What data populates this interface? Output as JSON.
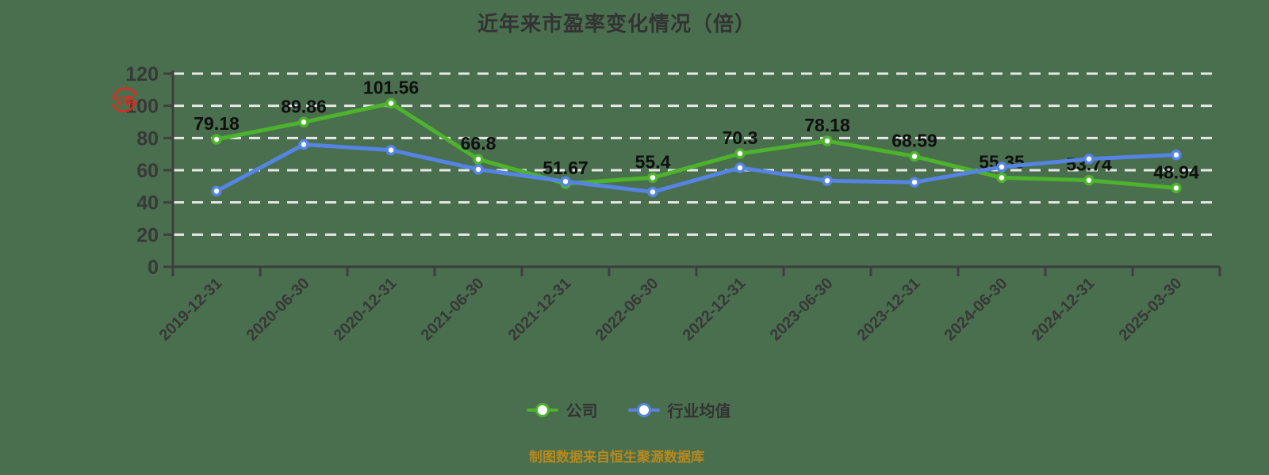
{
  "title": "近年来市盈率变化情况（倍）",
  "seal": {
    "text": "证星",
    "color": "#e02b20"
  },
  "caption": {
    "text": "制图数据来自恒生聚源数据库",
    "color": "#b8891c"
  },
  "legend": {
    "items": [
      {
        "label": "公司",
        "color": "#4db32c"
      },
      {
        "label": "行业均值",
        "color": "#5584e4"
      }
    ]
  },
  "colors": {
    "background": "#4a6f4e",
    "gridline": "#e8e8e8",
    "axis": "#3e3e3e",
    "tick_label": "#383838",
    "data_label": "#0f0f0f",
    "company_green": "#4db32c",
    "industry_blue": "#5584e4"
  },
  "chart_data": {
    "type": "line",
    "title": "近年来市盈率变化情况（倍）",
    "unit": "倍",
    "categories": [
      "2019-12-31",
      "2020-06-30",
      "2020-12-31",
      "2021-06-30",
      "2021-12-31",
      "2022-06-30",
      "2022-12-31",
      "2023-06-30",
      "2023-12-31",
      "2024-06-30",
      "2024-12-31",
      "2025-03-30"
    ],
    "series": [
      {
        "name": "公司",
        "color": "#4db32c",
        "values": [
          79.18,
          89.86,
          101.56,
          66.8,
          51.67,
          55.4,
          70.3,
          78.18,
          68.59,
          55.35,
          53.74,
          48.94
        ],
        "show_labels": true
      },
      {
        "name": "行业均值",
        "color": "#5584e4",
        "values": [
          47,
          76,
          72.5,
          60.5,
          53,
          46.5,
          61.5,
          53.5,
          52.5,
          62,
          67,
          69.5
        ],
        "show_labels": false
      }
    ],
    "ylim": [
      0,
      120
    ],
    "yticks": [
      0,
      20,
      40,
      60,
      80,
      100,
      120
    ],
    "grid": "horizontal-dashed",
    "legend_position": "bottom",
    "xlabel": "",
    "ylabel": ""
  }
}
